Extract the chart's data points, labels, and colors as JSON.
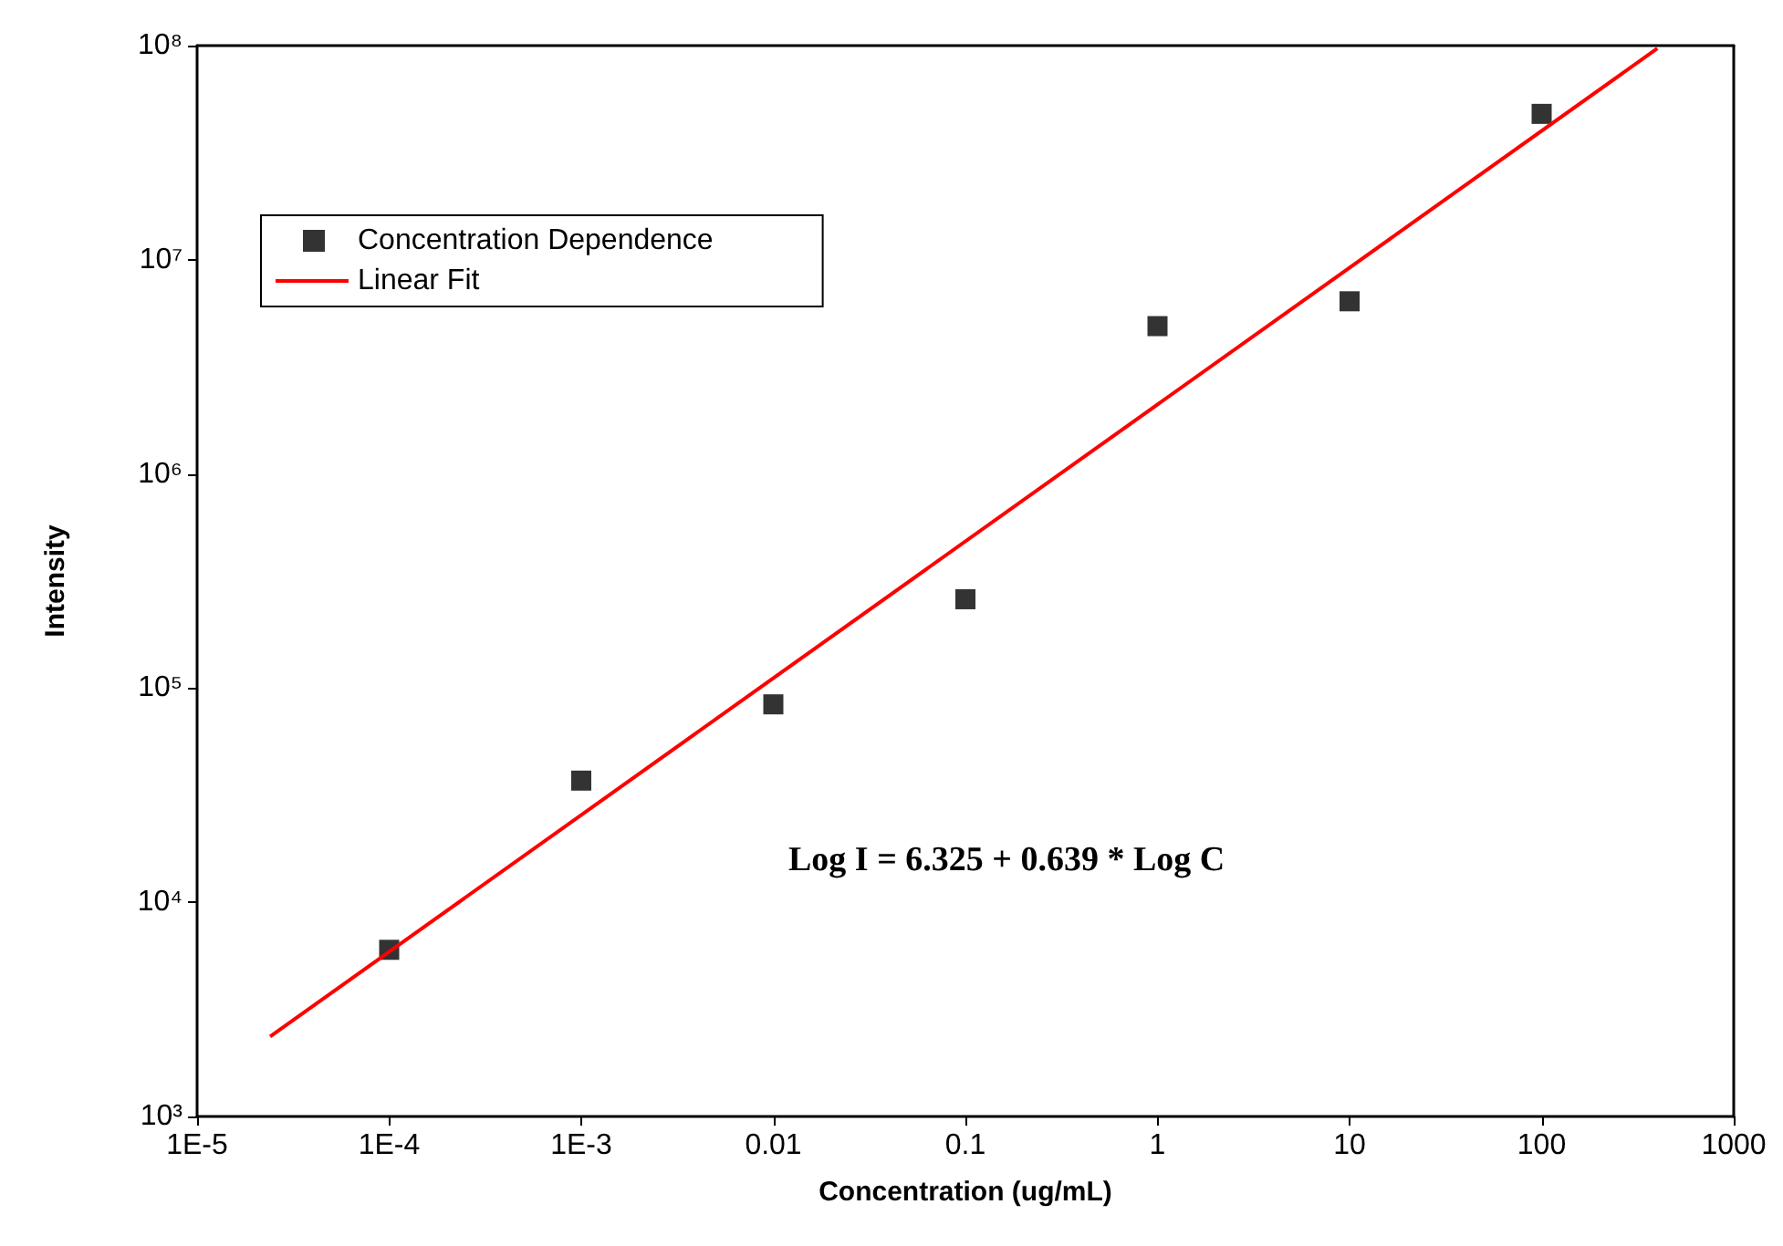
{
  "chart_data": {
    "type": "scatter",
    "xlabel": "Concentration (ug/mL)",
    "ylabel": "Intensity",
    "log": "xy",
    "grid": false,
    "legend": "top left",
    "marker": "square",
    "xlim": [
      1e-05,
      1000
    ],
    "xticks": [
      {
        "value": 1e-05,
        "label": "1E-5"
      },
      {
        "value": 0.0001,
        "label": "1E-4"
      },
      {
        "value": 0.001,
        "label": "1E-3"
      },
      0.01,
      0.1,
      1,
      10,
      100,
      1000
    ],
    "ylim": [
      1000,
      100000000
    ],
    "yticks": [
      {
        "value": 1000,
        "label": "10³"
      },
      {
        "value": 10000,
        "label": "10⁴"
      },
      {
        "value": 100000,
        "label": "10⁵"
      },
      {
        "value": 1000000,
        "label": "10⁶"
      },
      {
        "value": 10000000,
        "label": "10⁷"
      },
      {
        "value": 100000000,
        "label": "10⁸"
      }
    ],
    "series": [
      {
        "name": "Concentration Dependence",
        "color": "#000000",
        "x": [
          0.0001,
          0.001,
          0.01,
          0.1,
          1,
          10,
          100
        ],
        "values": [
          6000,
          37000,
          84000,
          260000,
          4900000,
          6400000,
          48000000
        ]
      },
      {
        "name": "Linear Fit",
        "type": "line",
        "color": "#ff0000",
        "marker": "none",
        "line_style": "solid",
        "x": [
          2.4e-05,
          400
        ],
        "values": [
          2360,
          97000000
        ]
      }
    ],
    "annotations": [
      "Log I = 6.325 + 0.639 * Log C"
    ]
  }
}
